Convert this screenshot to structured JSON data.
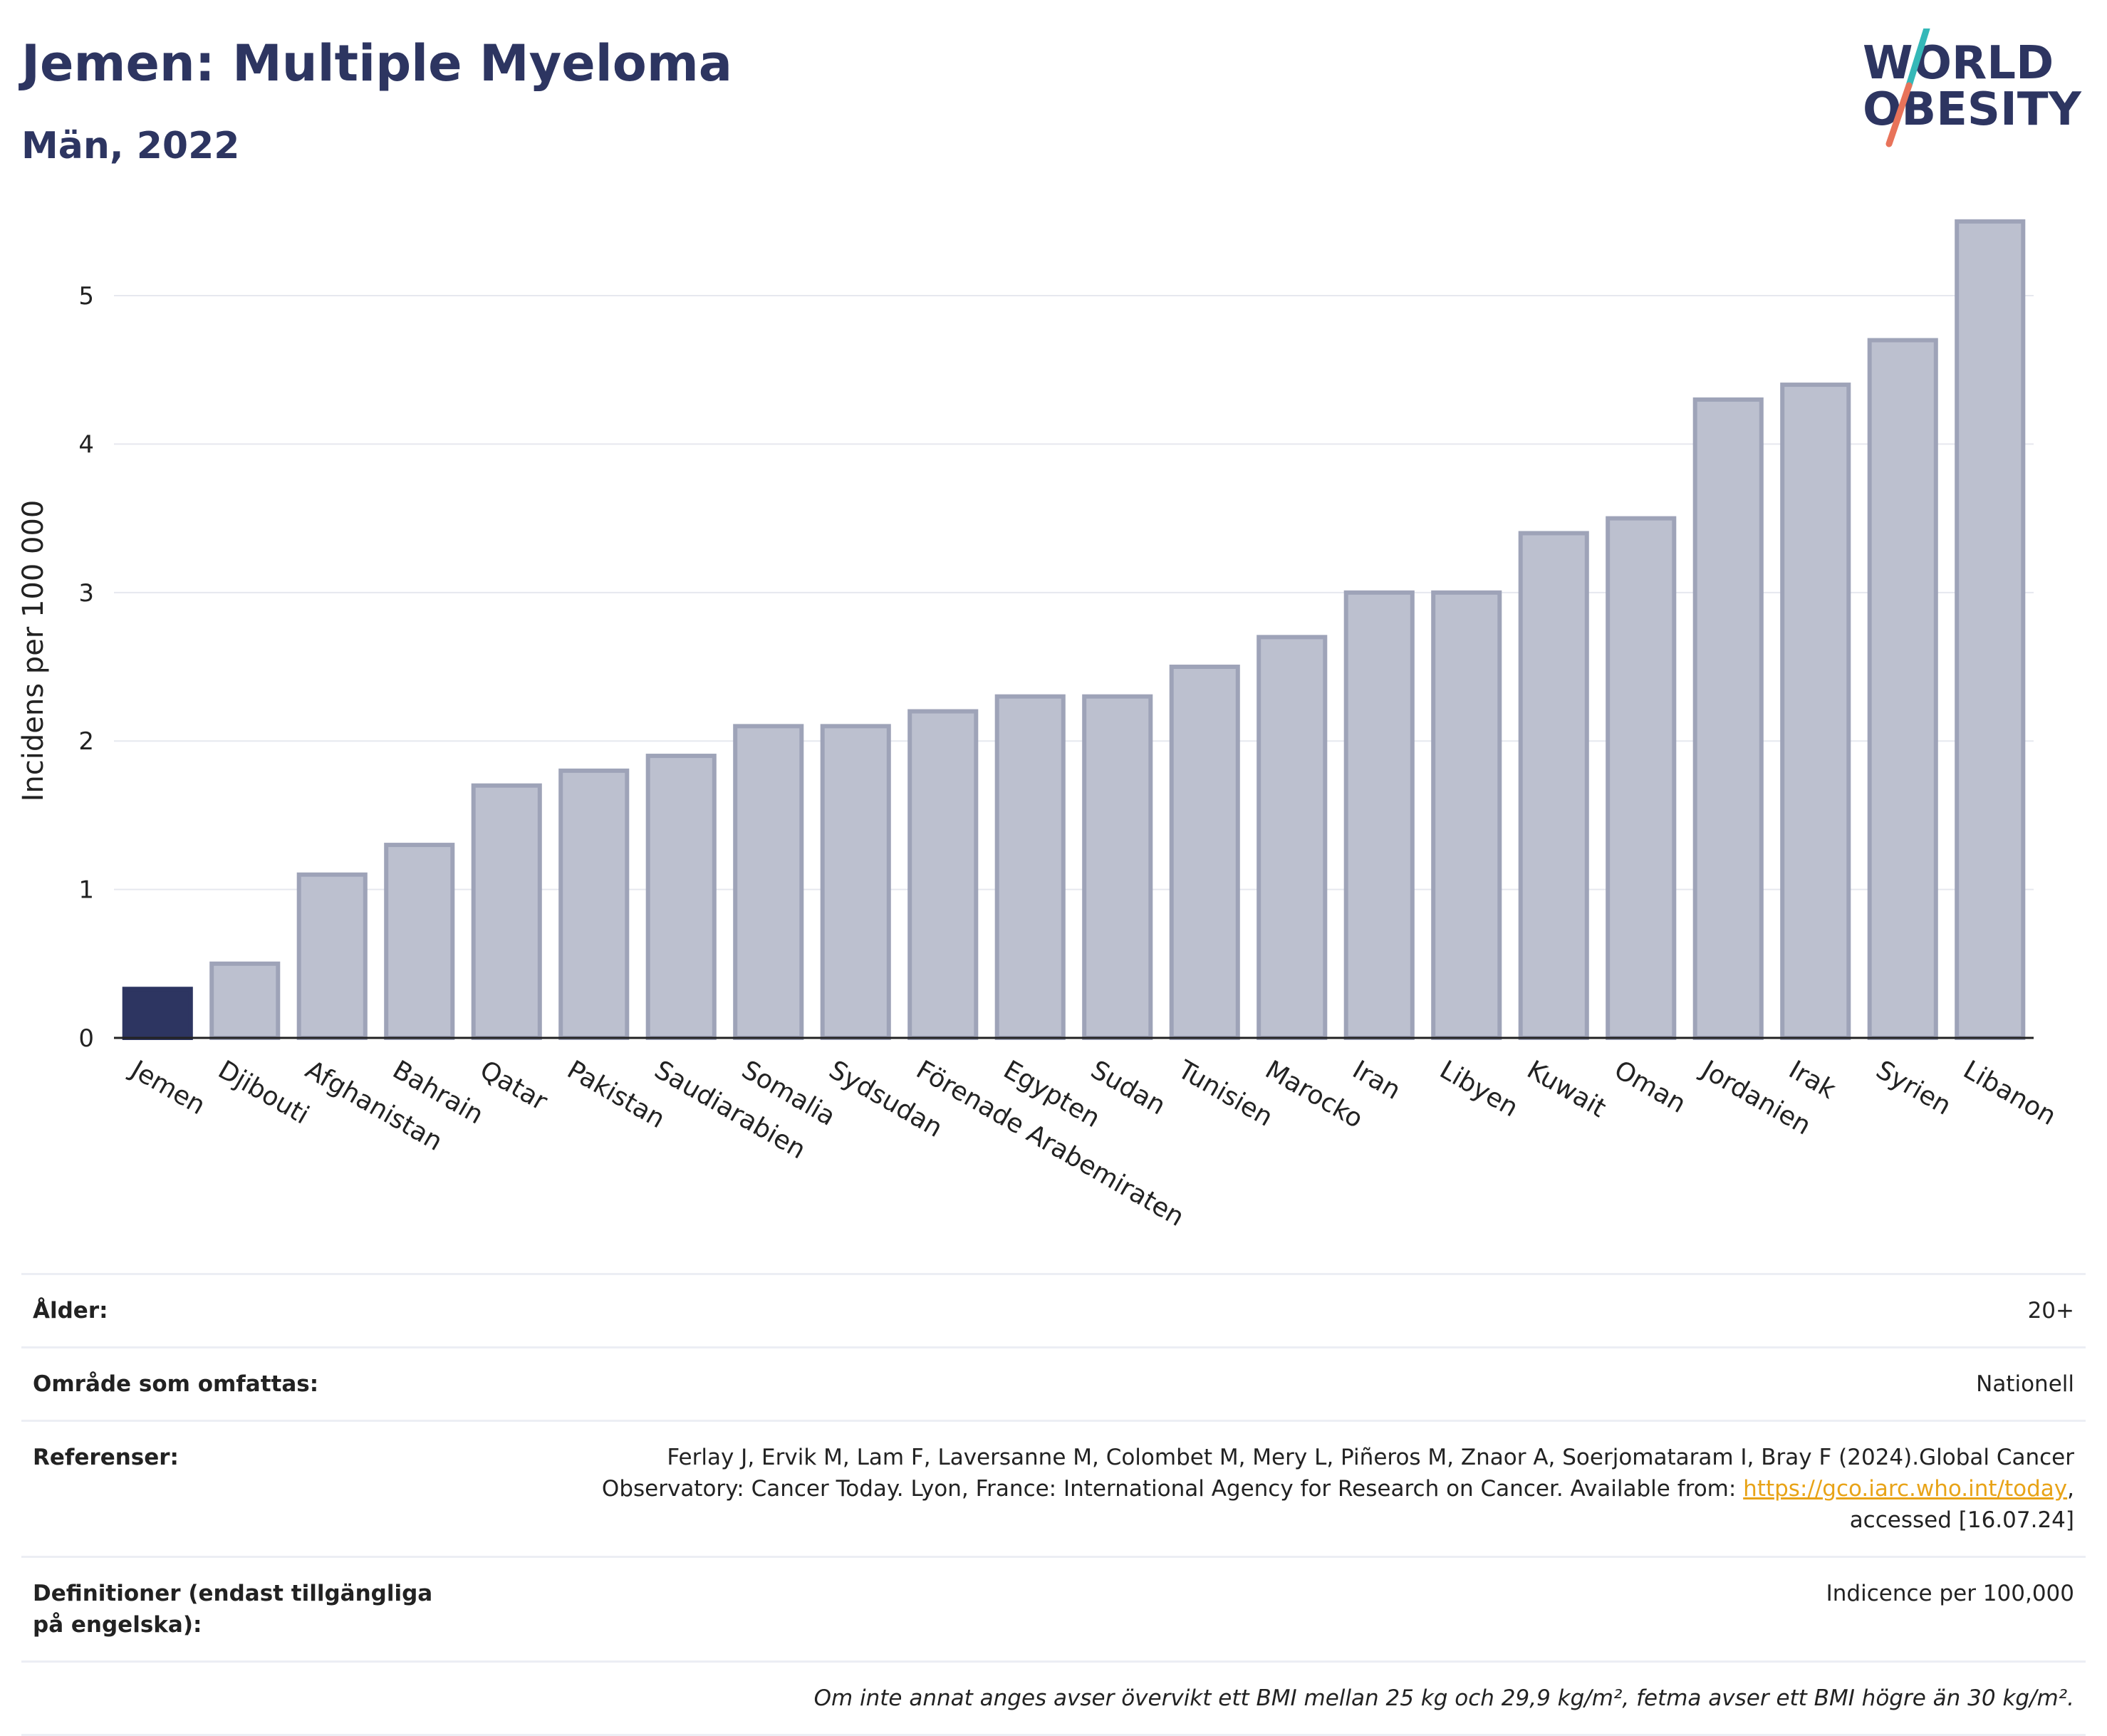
{
  "header": {
    "title": "Jemen: Multiple Myeloma",
    "subtitle": "Män, 2022"
  },
  "logo": {
    "line1": "WORLD",
    "line2": "OBESITY",
    "colors": {
      "text": "#2d3561",
      "slash_top": "#35b8b8",
      "slash_bottom": "#e8735a"
    }
  },
  "colors": {
    "highlight_bar": "#2d3561",
    "other_bar_fill": "#bcc0cf",
    "other_bar_stroke": "#9ea3b8",
    "grid": "#e6e8ef",
    "axis": "#222222",
    "link": "#e8a317"
  },
  "chart_data": {
    "type": "bar",
    "title": "Jemen: Multiple Myeloma",
    "subtitle": "Män, 2022",
    "xlabel": "",
    "ylabel": "Incidens per 100 000",
    "ylim": [
      0,
      5.6
    ],
    "yticks": [
      0,
      1,
      2,
      3,
      4,
      5
    ],
    "grid": true,
    "highlight": "Jemen",
    "categories": [
      "Jemen",
      "Djibouti",
      "Afghanistan",
      "Bahrain",
      "Qatar",
      "Pakistan",
      "Saudiarabien",
      "Somalia",
      "Sydsudan",
      "Förenade Arabemiraten",
      "Egypten",
      "Sudan",
      "Tunisien",
      "Marocko",
      "Iran",
      "Libyen",
      "Kuwait",
      "Oman",
      "Jordanien",
      "Irak",
      "Syrien",
      "Libanon"
    ],
    "values": [
      0.33,
      0.5,
      1.1,
      1.3,
      1.7,
      1.8,
      1.9,
      2.1,
      2.1,
      2.2,
      2.3,
      2.3,
      2.5,
      2.7,
      3.0,
      3.0,
      3.4,
      3.5,
      4.3,
      4.4,
      4.7,
      5.5
    ]
  },
  "info": {
    "age_label": "Ålder:",
    "age_value": "20+",
    "area_label": "Område som omfattas:",
    "area_value": "Nationell",
    "refs_label": "Referenser:",
    "refs_text_1": "Ferlay J, Ervik M, Lam F, Laversanne M, Colombet M, Mery L, Piñeros M, Znaor A, Soerjomataram I, Bray F (2024).Global Cancer",
    "refs_text_2": "Observatory: Cancer Today. Lyon, France: International Agency for Research on Cancer. Available from: ",
    "refs_link": "https://gco.iarc.who.int/today",
    "refs_text_3": ",",
    "refs_text_4": "accessed [16.07.24]",
    "def_label": "Definitioner (endast tillgängliga på engelska):",
    "def_value": "Indicence per 100,000",
    "footnote": "Om inte annat anges avser övervikt ett BMI mellan 25 kg och 29,9 kg/m², fetma avser ett BMI högre än 30 kg/m²."
  }
}
